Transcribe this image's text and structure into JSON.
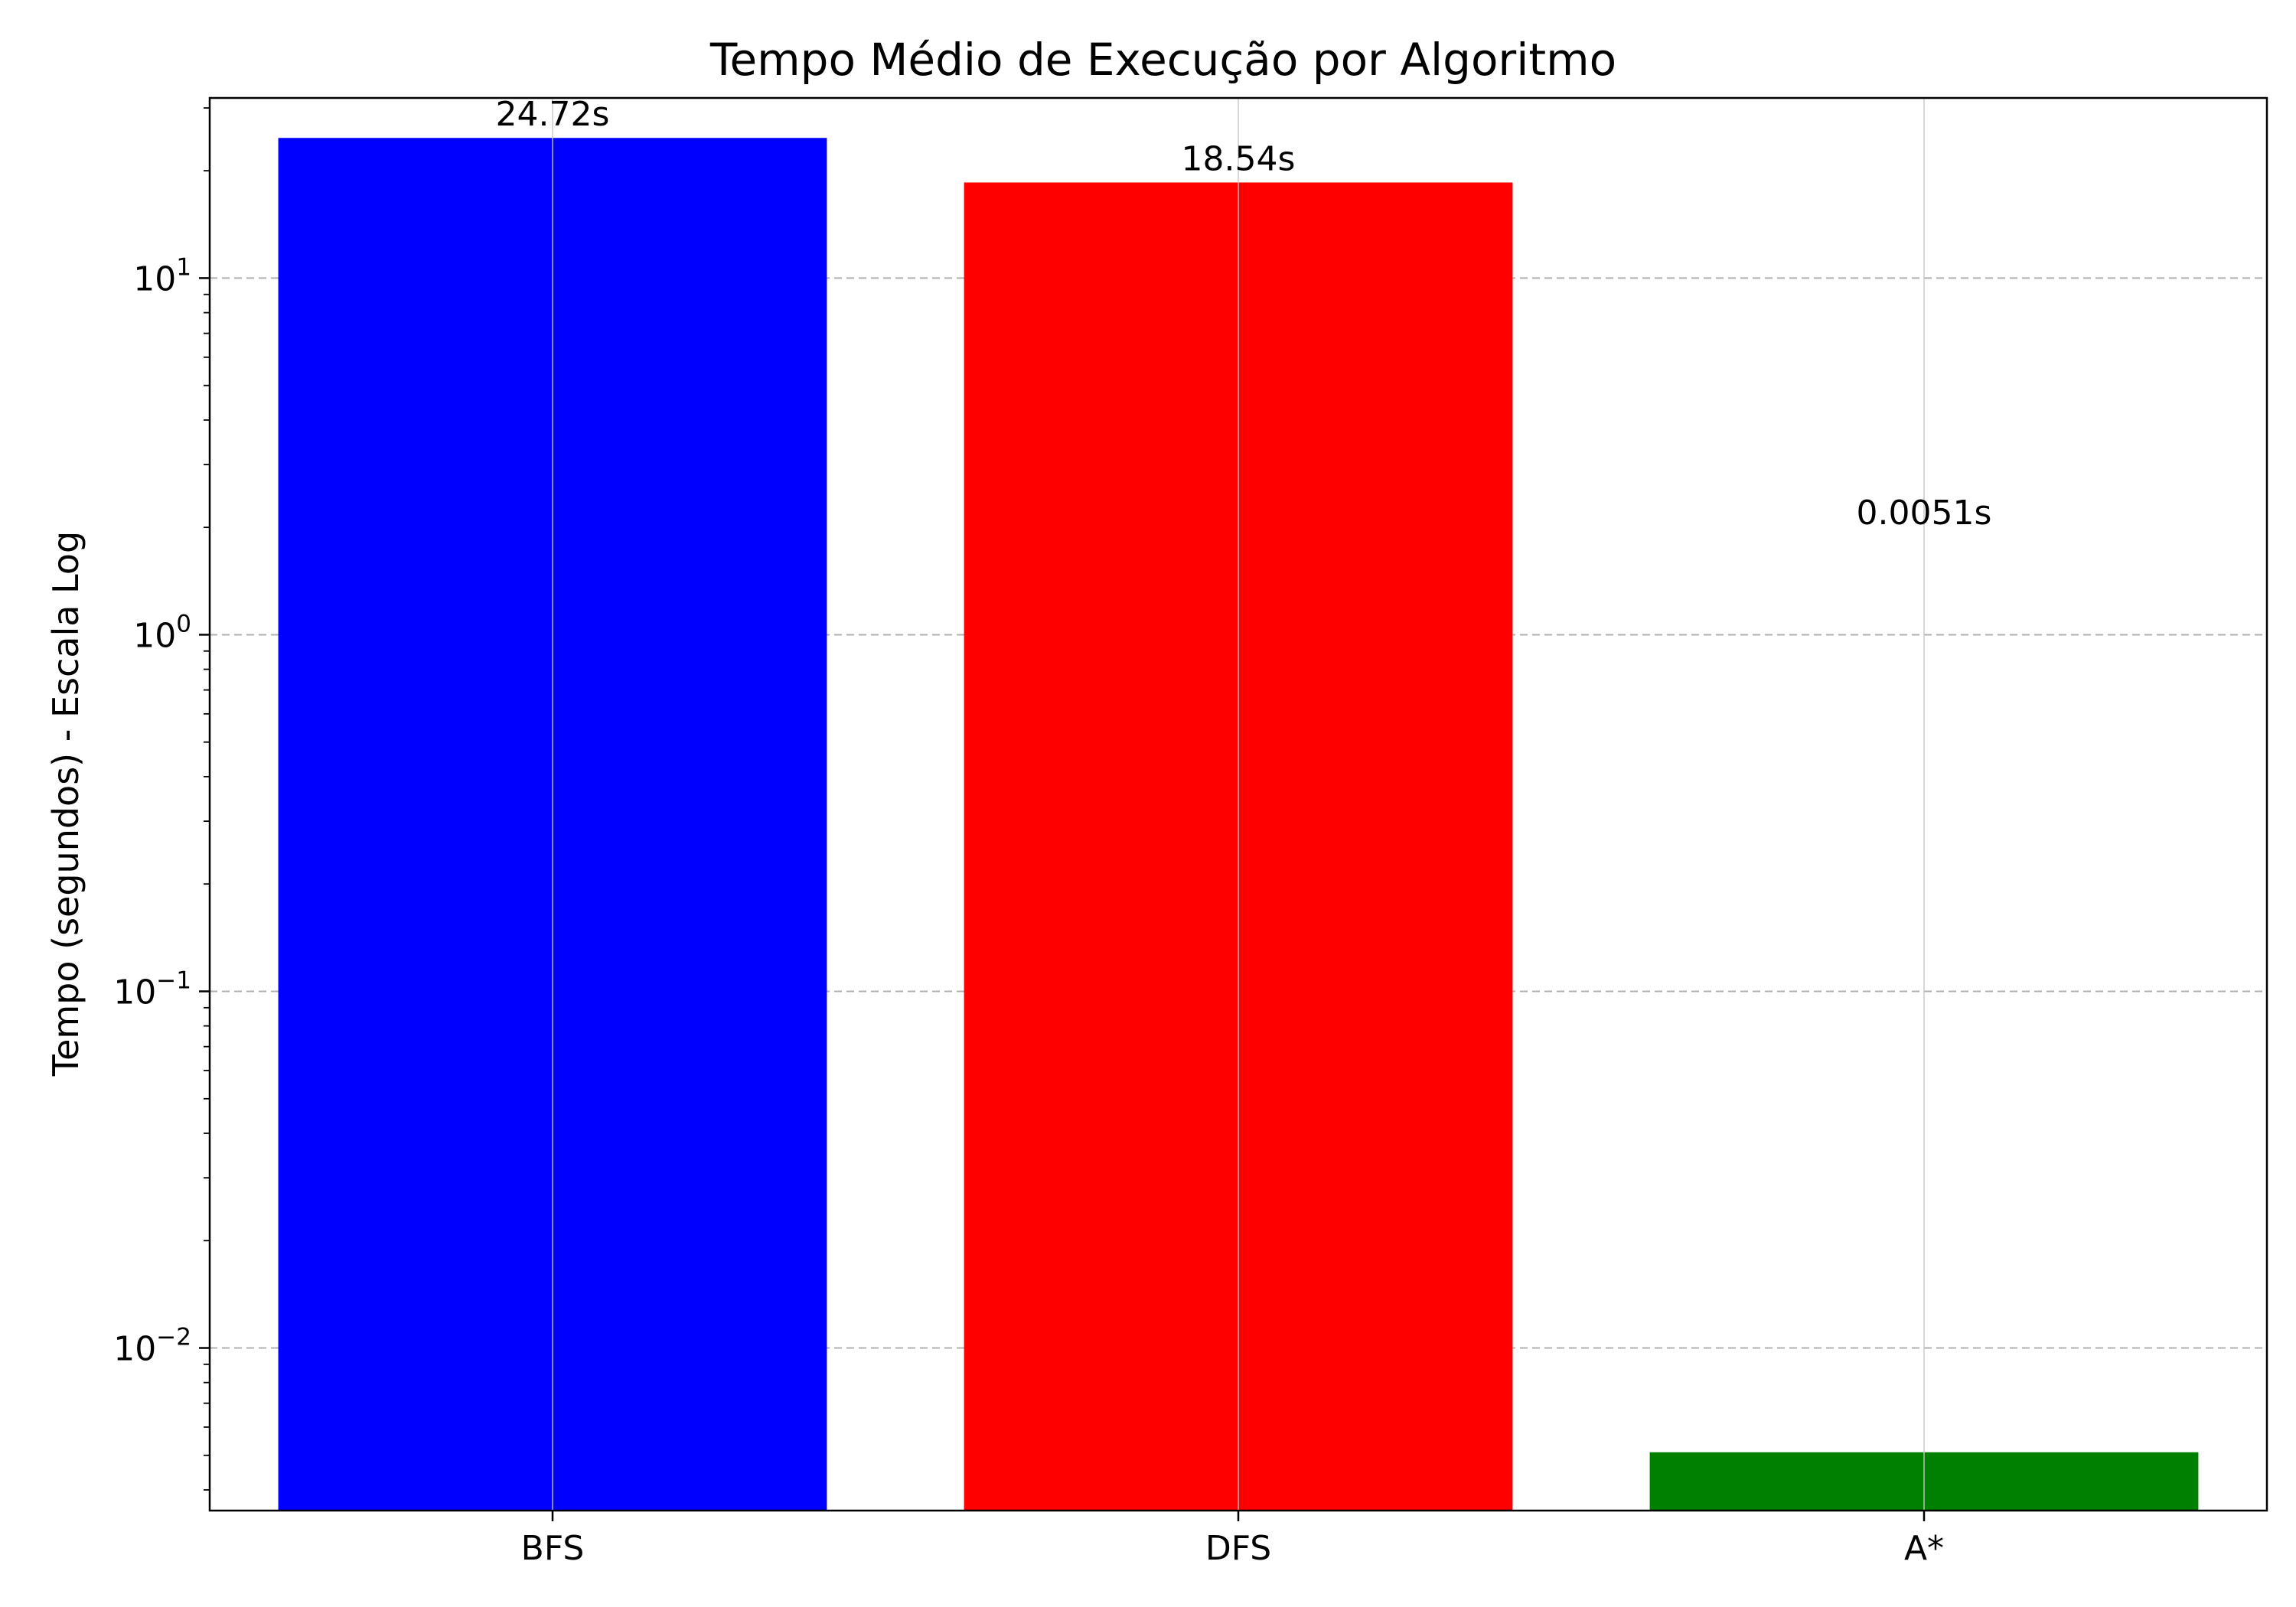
{
  "chart_data": {
    "type": "bar",
    "title": "Tempo Médio de Execução por Algoritmo",
    "xlabel": "",
    "ylabel": "Tempo (segundos) - Escala Log",
    "yscale": "log",
    "ylim": [
      0.0035,
      32
    ],
    "categories": [
      "BFS",
      "DFS",
      "A*"
    ],
    "values": [
      24.72,
      18.54,
      0.0051
    ],
    "data_labels": [
      "24.72s",
      "18.54s",
      "0.0051s"
    ],
    "colors": [
      "#0000ff",
      "#ff0000",
      "#008000"
    ],
    "y_ticks": [
      {
        "value": 10,
        "base": "10",
        "exp": "1"
      },
      {
        "value": 1,
        "base": "10",
        "exp": "0"
      },
      {
        "value": 0.1,
        "base": "10",
        "exp": "−1"
      },
      {
        "value": 0.01,
        "base": "10",
        "exp": "−2"
      }
    ],
    "grid": {
      "y": "dashed",
      "x": "solid-light"
    },
    "legend": "none"
  }
}
